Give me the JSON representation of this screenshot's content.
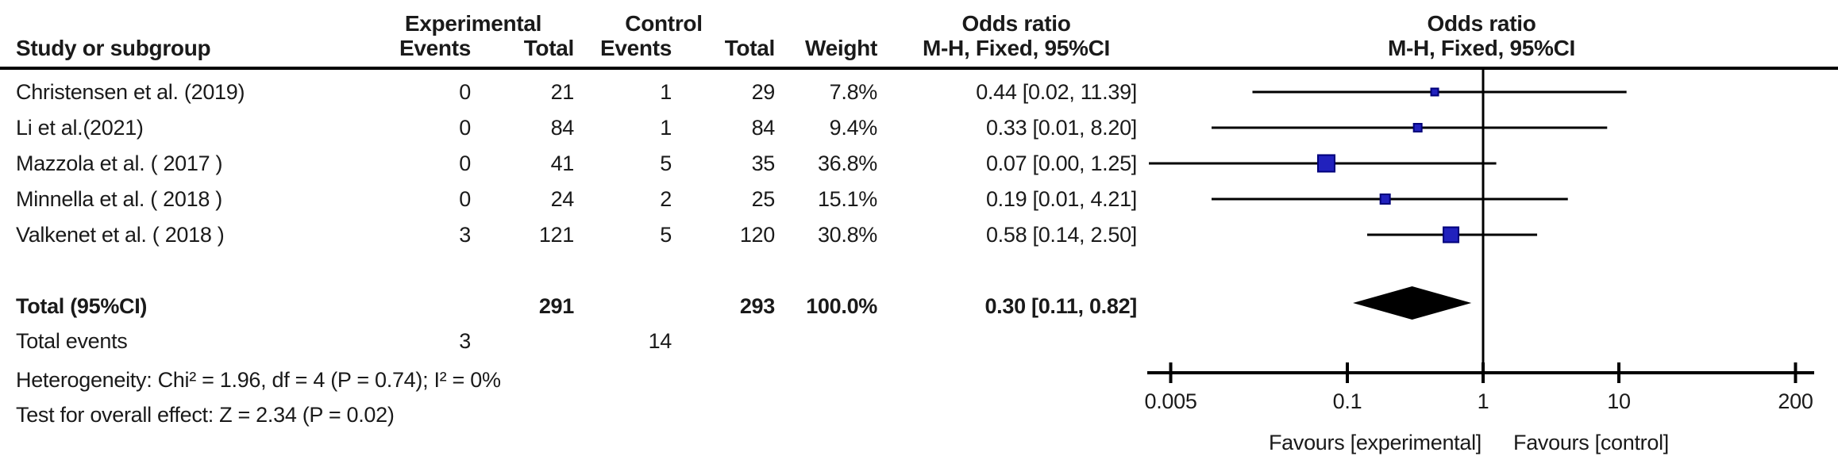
{
  "header": {
    "col_study": "Study or subgroup",
    "group_experimental": "Experimental",
    "group_control": "Control",
    "col_events": "Events",
    "col_total": "Total",
    "col_events2": "Events",
    "col_total2": "Total",
    "col_weight": "Weight",
    "or_title": "Odds ratio",
    "or_subtitle": "M-H, Fixed, 95%CI",
    "plot_title": "Odds ratio",
    "plot_subtitle": "M-H, Fixed, 95%CI"
  },
  "studies": [
    {
      "name": "Christensen et al. (2019)",
      "exp_events": "0",
      "exp_total": "21",
      "ctrl_events": "1",
      "ctrl_total": "29",
      "weight": "7.8%",
      "or_ci": "0.44 [0.02, 11.39]",
      "or": 0.44,
      "ci_low": 0.02,
      "ci_high": 11.39,
      "weight_value": 7.8
    },
    {
      "name": "Li et al.(2021)",
      "exp_events": "0",
      "exp_total": "84",
      "ctrl_events": "1",
      "ctrl_total": "84",
      "weight": "9.4%",
      "or_ci": "0.33 [0.01, 8.20]",
      "or": 0.33,
      "ci_low": 0.01,
      "ci_high": 8.2,
      "weight_value": 9.4
    },
    {
      "name": "Mazzola et al. ( 2017 )",
      "exp_events": "0",
      "exp_total": "41",
      "ctrl_events": "5",
      "ctrl_total": "35",
      "weight": "36.8%",
      "or_ci": "0.07 [0.00, 1.25]",
      "or": 0.07,
      "ci_low": 0.0033,
      "ci_high": 1.25,
      "weight_value": 36.8
    },
    {
      "name": "Minnella et al. ( 2018 )",
      "exp_events": "0",
      "exp_total": "24",
      "ctrl_events": "2",
      "ctrl_total": "25",
      "weight": "15.1%",
      "or_ci": "0.19 [0.01, 4.21]",
      "or": 0.19,
      "ci_low": 0.01,
      "ci_high": 4.21,
      "weight_value": 15.1
    },
    {
      "name": "Valkenet et al. ( 2018 )",
      "exp_events": "3",
      "exp_total": "121",
      "ctrl_events": "5",
      "ctrl_total": "120",
      "weight": "30.8%",
      "or_ci": "0.58 [0.14, 2.50]",
      "or": 0.58,
      "ci_low": 0.14,
      "ci_high": 2.5,
      "weight_value": 30.8
    }
  ],
  "totals": {
    "label": "Total (95%CI)",
    "exp_total": "291",
    "ctrl_total": "293",
    "weight": "100.0%",
    "or_ci": "0.30 [0.11, 0.82]",
    "or": 0.3,
    "ci_low": 0.11,
    "ci_high": 0.82,
    "events_label": "Total events",
    "exp_events": "3",
    "ctrl_events": "14"
  },
  "stats": {
    "heterogeneity": "Heterogeneity: Chi² = 1.96, df = 4 (P = 0.74); I² = 0%",
    "overall_effect": "Test for overall effect: Z = 2.34 (P = 0.02)"
  },
  "axis": {
    "tick_labels": [
      "0.005",
      "0.1",
      "1",
      "10",
      "200"
    ],
    "favours_left": "Favours [experimental]",
    "favours_right": "Favours [control]"
  },
  "colors": {
    "marker_fill": "#2121bd",
    "marker_stroke": "#00007a",
    "line": "#000000",
    "diamond": "#000000",
    "text": "#1a1a1a"
  },
  "chart_data": {
    "type": "forest",
    "effect_measure": "Odds ratio, M-H, Fixed, 95%CI",
    "x_scale": "log",
    "x_ticks": [
      0.005,
      0.1,
      1,
      10,
      200
    ],
    "xlim": [
      0.005,
      200
    ],
    "reference_line": 1,
    "studies": [
      "Christensen et al. (2019)",
      "Li et al.(2021)",
      "Mazzola et al. ( 2017 )",
      "Minnella et al. ( 2018 )",
      "Valkenet et al. ( 2018 )"
    ],
    "or": [
      0.44,
      0.33,
      0.07,
      0.19,
      0.58
    ],
    "ci_low": [
      0.02,
      0.01,
      0.0,
      0.01,
      0.14
    ],
    "ci_high": [
      11.39,
      8.2,
      1.25,
      4.21,
      2.5
    ],
    "weights_pct": [
      7.8,
      9.4,
      36.8,
      15.1,
      30.8
    ],
    "exp_events": [
      0,
      0,
      0,
      0,
      3
    ],
    "exp_totals": [
      21,
      84,
      41,
      24,
      121
    ],
    "ctrl_events": [
      1,
      1,
      5,
      2,
      5
    ],
    "ctrl_totals": [
      29,
      84,
      35,
      25,
      120
    ],
    "summary": {
      "label": "Total (95%CI)",
      "or": 0.3,
      "ci_low": 0.11,
      "ci_high": 0.82,
      "weight_pct": 100.0,
      "exp_total": 291,
      "ctrl_total": 293,
      "total_events_exp": 3,
      "total_events_ctrl": 14
    },
    "heterogeneity": "Chi² = 1.96, df = 4 (P = 0.74); I² = 0%",
    "overall_effect": "Z = 2.34 (P = 0.02)",
    "footer_left": "Favours [experimental]",
    "footer_right": "Favours [control]"
  }
}
